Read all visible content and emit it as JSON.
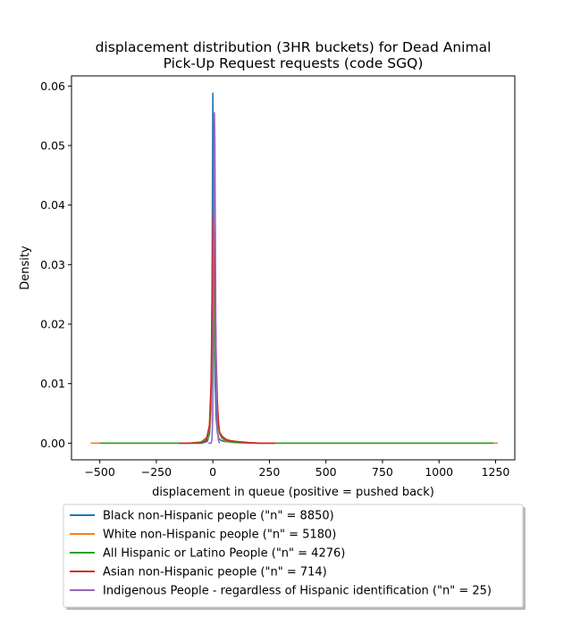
{
  "chart_data": {
    "type": "line",
    "title": [
      "displacement distribution (3HR buckets) for Dead Animal",
      "Pick-Up Request requests (code SGQ)"
    ],
    "xlabel": "displacement in queue (positive = pushed back)",
    "ylabel": "Density",
    "xlim": [
      -625,
      1335
    ],
    "ylim": [
      -0.0028,
      0.0617
    ],
    "xticks": [
      -500,
      -250,
      0,
      250,
      500,
      750,
      1000,
      1250
    ],
    "xtick_labels": [
      "−500",
      "−250",
      "0",
      "250",
      "500",
      "750",
      "1000",
      "1250"
    ],
    "yticks": [
      0.0,
      0.01,
      0.02,
      0.03,
      0.04,
      0.05,
      0.06
    ],
    "ytick_labels": [
      "0.00",
      "0.01",
      "0.02",
      "0.03",
      "0.04",
      "0.05",
      "0.06"
    ],
    "grid": false,
    "legend_position": "below",
    "series": [
      {
        "name": "Black non-Hispanic people (\"n\" = 8850)",
        "color": "#1f77b4",
        "x": [
          -150,
          -50,
          -25,
          -15,
          -10,
          -6,
          -3,
          -1,
          0,
          1,
          3,
          6,
          10,
          15,
          20,
          25,
          30,
          40,
          50,
          70,
          100,
          150,
          200,
          275
        ],
        "y": [
          0,
          0,
          0.0003,
          0.0015,
          0.004,
          0.012,
          0.03,
          0.05,
          0.0588,
          0.055,
          0.04,
          0.022,
          0.01,
          0.004,
          0.0018,
          0.0009,
          0.0006,
          0.0004,
          0.0003,
          0.0002,
          0.0001,
          5e-05,
          0,
          0
        ]
      },
      {
        "name": "White non-Hispanic people (\"n\" = 5180)",
        "color": "#ff7f0e",
        "x": [
          -540,
          -200,
          -100,
          -50,
          -20,
          -10,
          -5,
          0,
          3,
          6,
          10,
          15,
          20,
          30,
          40,
          60,
          100,
          200,
          500,
          1000,
          1260
        ],
        "y": [
          0,
          0,
          0,
          0.0002,
          0.001,
          0.004,
          0.012,
          0.03,
          0.036,
          0.03,
          0.018,
          0.008,
          0.004,
          0.0015,
          0.0008,
          0.0003,
          0.0001,
          0,
          0,
          0,
          0
        ]
      },
      {
        "name": "All Hispanic or Latino People (\"n\" = 4276)",
        "color": "#2ca02c",
        "x": [
          -500,
          -200,
          -100,
          -50,
          -20,
          -10,
          -5,
          0,
          3,
          6,
          10,
          15,
          20,
          30,
          40,
          60,
          100,
          200,
          500,
          1000,
          1240
        ],
        "y": [
          0,
          0,
          0,
          0.0002,
          0.0012,
          0.005,
          0.014,
          0.032,
          0.038,
          0.032,
          0.02,
          0.009,
          0.0045,
          0.0018,
          0.0009,
          0.0004,
          0.0001,
          0,
          0,
          0,
          0
        ]
      },
      {
        "name": "Asian non-Hispanic people (\"n\" = 714)",
        "color": "#d62728",
        "x": [
          -150,
          -60,
          -30,
          -15,
          -8,
          -3,
          0,
          3,
          6,
          10,
          15,
          20,
          25,
          30,
          40,
          50,
          60,
          80,
          100,
          130,
          160,
          200,
          275
        ],
        "y": [
          0,
          0,
          0.0004,
          0.003,
          0.01,
          0.025,
          0.037,
          0.0395,
          0.035,
          0.025,
          0.014,
          0.007,
          0.0035,
          0.0018,
          0.0012,
          0.0009,
          0.0006,
          0.0004,
          0.0003,
          0.0002,
          0.0001,
          0,
          0
        ]
      },
      {
        "name": "Indigenous People - regardless of Hispanic identification (\"n\" = 25)",
        "color": "#9467bd",
        "x": [
          -20,
          -8,
          -4,
          -1,
          1,
          3,
          5,
          7,
          9,
          11,
          13,
          16,
          20,
          25,
          30
        ],
        "y": [
          0,
          0,
          0.0005,
          0.004,
          0.012,
          0.03,
          0.048,
          0.0555,
          0.05,
          0.036,
          0.02,
          0.008,
          0.0025,
          0.0004,
          0
        ]
      }
    ]
  }
}
